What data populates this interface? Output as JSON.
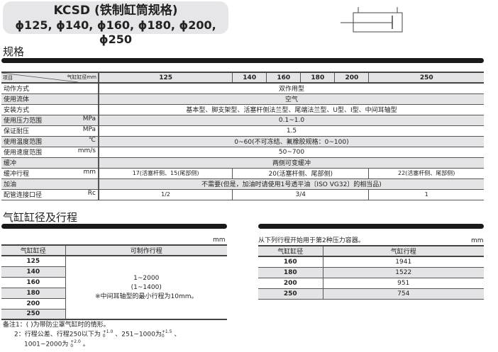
{
  "title": {
    "line1": "KCSD (铁制缸筒规格)",
    "line2": "ϕ125, ϕ140, ϕ160, ϕ180, ϕ200, ϕ250"
  },
  "spec": {
    "heading": "规格",
    "corner_item": "项目",
    "corner_bore": "气缸缸径mm",
    "bores": [
      "125",
      "140",
      "160",
      "180",
      "200",
      "250"
    ],
    "rows": [
      {
        "label": "动作方式",
        "unit": "",
        "value": "双作用型"
      },
      {
        "label": "使用流体",
        "unit": "",
        "value": "空气"
      },
      {
        "label": "安装方式",
        "unit": "",
        "value": "基本型、脚支架型、活塞杆侧法兰型、尾端法兰型、U型、I型、中间耳轴型"
      },
      {
        "label": "使用压力范围",
        "unit": "MPa",
        "value": "0.1~1.0"
      },
      {
        "label": "保证耐压",
        "unit": "MPa",
        "value": "1.5"
      },
      {
        "label": "使用温度范围",
        "unit": "℃",
        "value": "0~60(不可冻结、氟橡胶规格：0~100)"
      },
      {
        "label": "使用速度范围",
        "unit": "mm/s",
        "value": "50~700"
      },
      {
        "label": "缓冲",
        "unit": "",
        "value": "两侧可变缓冲"
      },
      {
        "label": "缓冲行程",
        "unit": "mm",
        "v1": "17(活塞杆侧、15(尾部侧)",
        "v2": "20(活塞杆侧、尾部侧)",
        "v3": "22(活塞杆侧、尾部侧)"
      },
      {
        "label": "加油",
        "unit": "",
        "value": "不需要(但是，加油时请使用1号透平油〔ISO VG32〕的相当品)"
      },
      {
        "label": "配管连接口径",
        "unit": "Rc",
        "v1": "1/2",
        "v2": "3/4",
        "v3": "1"
      }
    ]
  },
  "stroke": {
    "heading": "气缸缸径及行程",
    "unit": "mm",
    "col1": "气缸缸径",
    "col2": "可制作行程",
    "bores": [
      "125",
      "140",
      "160",
      "180",
      "200",
      "250"
    ],
    "range1": "1~2000",
    "range2": "(1~1400)",
    "range3": "※中间耳轴型的最小行程为10mm。"
  },
  "vessel": {
    "caption": "从下列行程开始用于第2种压力容器。",
    "unit": "mm",
    "col1": "气缸缸径",
    "col2": "气缸行程",
    "rows": [
      [
        "160",
        "1941"
      ],
      [
        "180",
        "1522"
      ],
      [
        "200",
        "951"
      ],
      [
        "250",
        "754"
      ]
    ]
  },
  "notes": {
    "n1": "备注1：(   )为带防尘罩气缸时的情形。",
    "n2a": "2：行程公差、行程250以下为",
    "t1": "+1.0",
    "z": "0",
    "n2b": "、251~1000为",
    "t2": "+1.5",
    "n2c": "、",
    "n3a": "1001~2000为",
    "t3": "+2.0",
    "n3b": "。"
  }
}
